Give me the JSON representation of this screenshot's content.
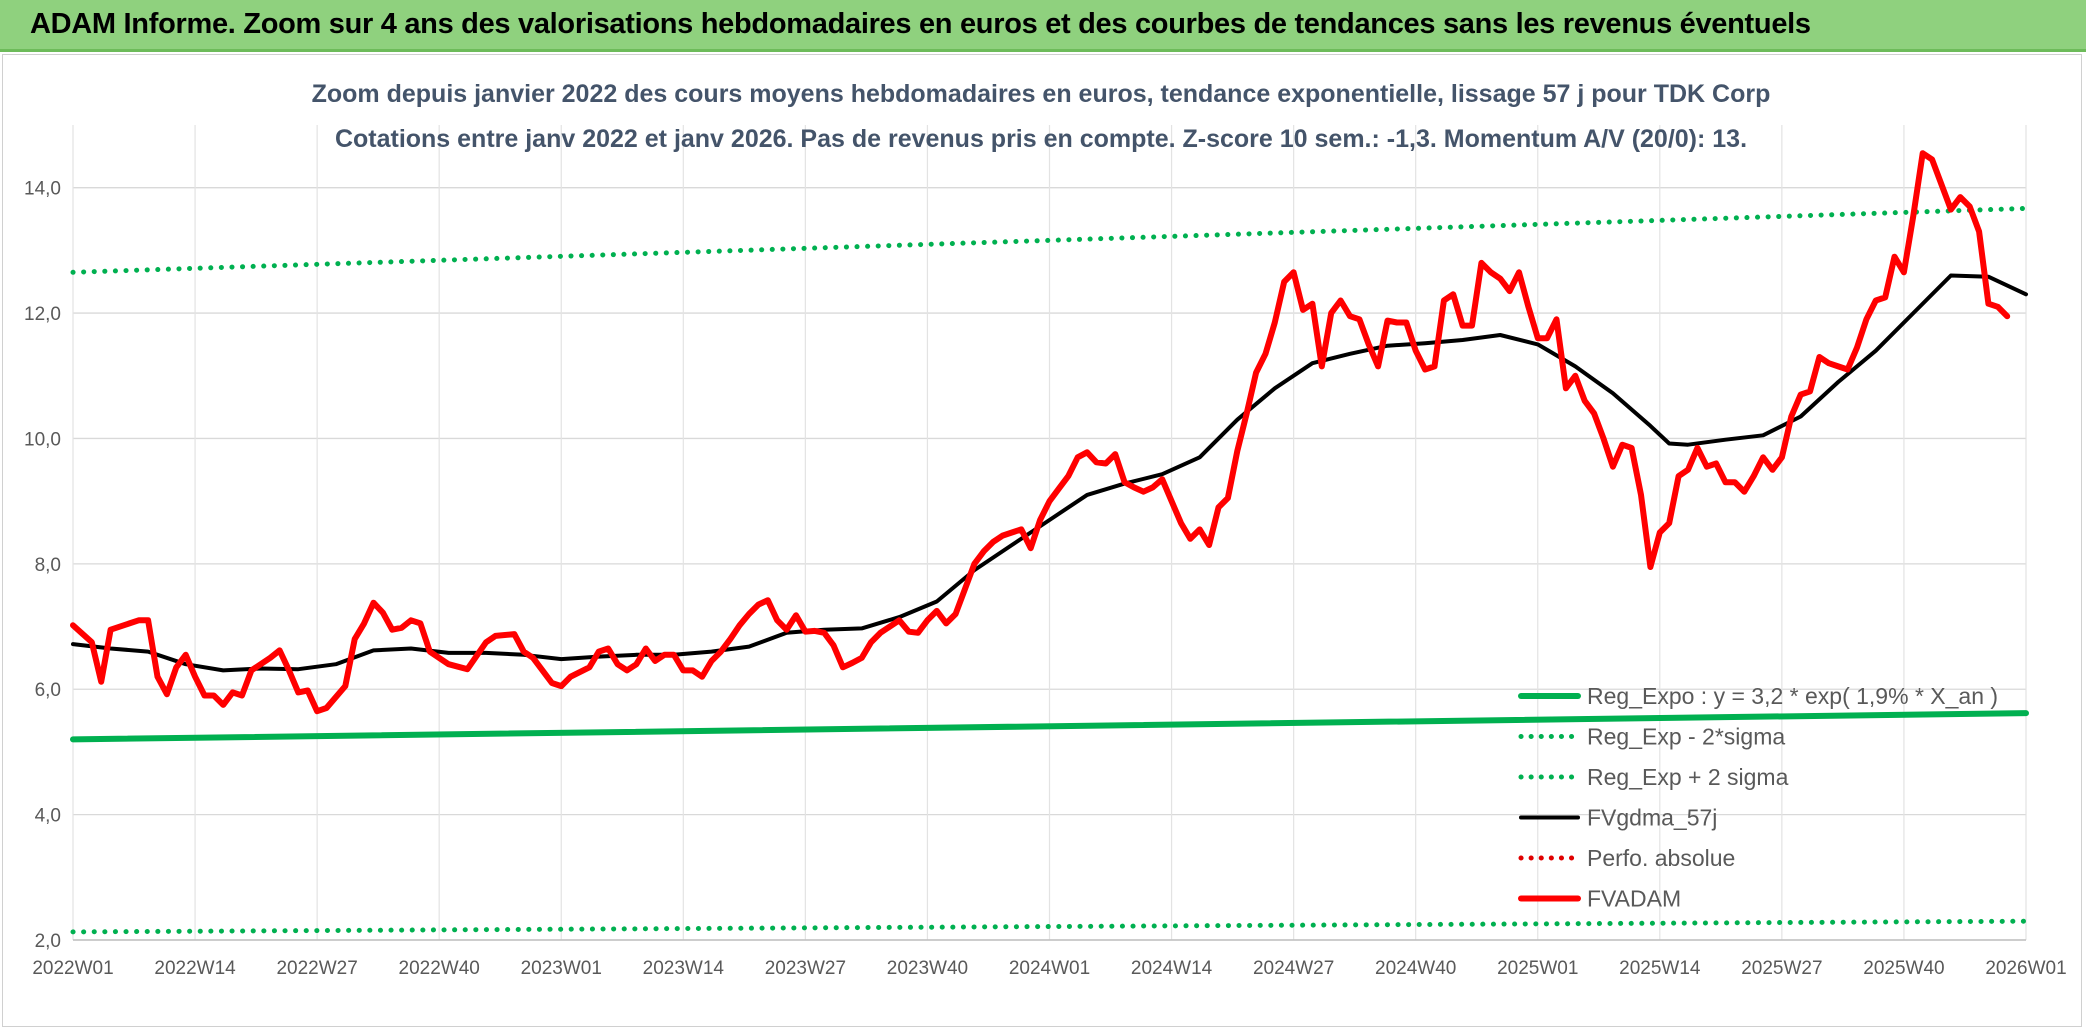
{
  "header": {
    "title": "ADAM Informe. Zoom sur 4 ans des valorisations hebdomadaires en euros et des courbes de tendances sans les revenus éventuels"
  },
  "chart_data": {
    "type": "line",
    "title": "Zoom depuis janvier 2022 des cours moyens hebdomadaires en euros, tendance exponentielle, lissage 57 j pour TDK Corp",
    "subtitle": "Cotations entre janv 2022 et janv 2026. Pas de revenus pris en compte. Z-score 10 sem.: -1,3. Momentum A/V (20/0): 13.",
    "ylim": [
      2.0,
      15.0
    ],
    "yticks": [
      2.0,
      4.0,
      6.0,
      8.0,
      10.0,
      12.0,
      14.0
    ],
    "ytick_labels": [
      "2,0",
      "4,0",
      "6,0",
      "8,0",
      "10,0",
      "12,0",
      "14,0"
    ],
    "x_range": [
      0,
      208
    ],
    "xticks": [
      0,
      13,
      26,
      39,
      52,
      65,
      78,
      91,
      104,
      117,
      130,
      143,
      156,
      169,
      182,
      195,
      208
    ],
    "xtick_labels": [
      "2022W01",
      "2022W14",
      "2022W27",
      "2022W40",
      "2023W01",
      "2023W14",
      "2023W27",
      "2023W40",
      "2024W01",
      "2024W14",
      "2024W27",
      "2024W40",
      "2025W01",
      "2025W14",
      "2025W27",
      "2025W40",
      "2026W01"
    ],
    "grid": true,
    "legend_position": "bottom-right",
    "series": [
      {
        "name": "Reg_Expo : y = 3,2 * exp( 1,9% *  X_an )",
        "color": "#00b050",
        "style": "solid",
        "points": [
          [
            0,
            5.2
          ],
          [
            208,
            5.62
          ]
        ]
      },
      {
        "name": "Reg_Exp - 2*sigma",
        "color": "#00b050",
        "style": "dotted",
        "points": [
          [
            0,
            2.13
          ],
          [
            208,
            2.3
          ]
        ]
      },
      {
        "name": "Reg_Exp + 2 sigma",
        "color": "#00b050",
        "style": "dotted",
        "points": [
          [
            0,
            12.65
          ],
          [
            208,
            13.67
          ]
        ]
      },
      {
        "name": "FVgdma_57j",
        "color": "#000000",
        "style": "solid",
        "points": [
          [
            0,
            6.72
          ],
          [
            4,
            6.65
          ],
          [
            8,
            6.6
          ],
          [
            12,
            6.4
          ],
          [
            16,
            6.3
          ],
          [
            20,
            6.33
          ],
          [
            24,
            6.32
          ],
          [
            28,
            6.4
          ],
          [
            32,
            6.62
          ],
          [
            36,
            6.65
          ],
          [
            40,
            6.58
          ],
          [
            44,
            6.58
          ],
          [
            48,
            6.55
          ],
          [
            52,
            6.48
          ],
          [
            56,
            6.52
          ],
          [
            60,
            6.55
          ],
          [
            64,
            6.55
          ],
          [
            68,
            6.6
          ],
          [
            72,
            6.68
          ],
          [
            76,
            6.9
          ],
          [
            80,
            6.95
          ],
          [
            84,
            6.97
          ],
          [
            88,
            7.15
          ],
          [
            92,
            7.4
          ],
          [
            96,
            7.9
          ],
          [
            100,
            8.3
          ],
          [
            104,
            8.7
          ],
          [
            108,
            9.1
          ],
          [
            112,
            9.28
          ],
          [
            116,
            9.43
          ],
          [
            120,
            9.7
          ],
          [
            124,
            10.3
          ],
          [
            128,
            10.8
          ],
          [
            132,
            11.2
          ],
          [
            136,
            11.35
          ],
          [
            140,
            11.48
          ],
          [
            144,
            11.52
          ],
          [
            148,
            11.57
          ],
          [
            152,
            11.65
          ],
          [
            156,
            11.5
          ],
          [
            160,
            11.15
          ],
          [
            164,
            10.72
          ],
          [
            168,
            10.2
          ],
          [
            170,
            9.92
          ],
          [
            172,
            9.9
          ],
          [
            176,
            9.98
          ],
          [
            180,
            10.05
          ],
          [
            184,
            10.35
          ],
          [
            188,
            10.9
          ],
          [
            192,
            11.4
          ],
          [
            196,
            12.0
          ],
          [
            200,
            12.6
          ],
          [
            204,
            12.58
          ],
          [
            208,
            12.3
          ]
        ]
      },
      {
        "name": "Perfo. absolue",
        "color": "#e00000",
        "style": "dotted",
        "points": []
      },
      {
        "name": "FVADAM",
        "color": "#ff0000",
        "style": "solid",
        "points": [
          [
            0,
            7.02
          ],
          [
            2,
            6.75
          ],
          [
            3,
            6.12
          ],
          [
            4,
            6.95
          ],
          [
            7,
            7.1
          ],
          [
            8,
            7.1
          ],
          [
            9,
            6.2
          ],
          [
            10,
            5.92
          ],
          [
            11,
            6.35
          ],
          [
            12,
            6.55
          ],
          [
            13,
            6.2
          ],
          [
            14,
            5.9
          ],
          [
            15,
            5.9
          ],
          [
            16,
            5.75
          ],
          [
            17,
            5.95
          ],
          [
            18,
            5.9
          ],
          [
            19,
            6.3
          ],
          [
            21,
            6.5
          ],
          [
            22,
            6.62
          ],
          [
            23,
            6.3
          ],
          [
            24,
            5.95
          ],
          [
            25,
            5.98
          ],
          [
            26,
            5.65
          ],
          [
            27,
            5.7
          ],
          [
            29,
            6.05
          ],
          [
            30,
            6.8
          ],
          [
            31,
            7.05
          ],
          [
            32,
            7.38
          ],
          [
            33,
            7.22
          ],
          [
            34,
            6.95
          ],
          [
            35,
            6.98
          ],
          [
            36,
            7.1
          ],
          [
            37,
            7.05
          ],
          [
            38,
            6.6
          ],
          [
            40,
            6.4
          ],
          [
            42,
            6.32
          ],
          [
            44,
            6.75
          ],
          [
            45,
            6.85
          ],
          [
            47,
            6.88
          ],
          [
            48,
            6.6
          ],
          [
            49,
            6.5
          ],
          [
            50,
            6.3
          ],
          [
            51,
            6.1
          ],
          [
            52,
            6.05
          ],
          [
            53,
            6.2
          ],
          [
            55,
            6.35
          ],
          [
            56,
            6.6
          ],
          [
            57,
            6.65
          ],
          [
            58,
            6.4
          ],
          [
            59,
            6.3
          ],
          [
            60,
            6.4
          ],
          [
            61,
            6.65
          ],
          [
            62,
            6.45
          ],
          [
            63,
            6.55
          ],
          [
            64,
            6.55
          ],
          [
            65,
            6.3
          ],
          [
            66,
            6.3
          ],
          [
            67,
            6.2
          ],
          [
            68,
            6.45
          ],
          [
            69,
            6.6
          ],
          [
            70,
            6.8
          ],
          [
            71,
            7.02
          ],
          [
            72,
            7.2
          ],
          [
            73,
            7.35
          ],
          [
            74,
            7.42
          ],
          [
            75,
            7.1
          ],
          [
            76,
            6.95
          ],
          [
            77,
            7.18
          ],
          [
            78,
            6.92
          ],
          [
            79,
            6.93
          ],
          [
            80,
            6.9
          ],
          [
            81,
            6.7
          ],
          [
            82,
            6.35
          ],
          [
            83,
            6.42
          ],
          [
            84,
            6.5
          ],
          [
            85,
            6.75
          ],
          [
            86,
            6.9
          ],
          [
            87,
            7.0
          ],
          [
            88,
            7.1
          ],
          [
            89,
            6.92
          ],
          [
            90,
            6.9
          ],
          [
            91,
            7.1
          ],
          [
            92,
            7.25
          ],
          [
            93,
            7.05
          ],
          [
            94,
            7.2
          ],
          [
            95,
            7.6
          ],
          [
            96,
            8.0
          ],
          [
            97,
            8.2
          ],
          [
            98,
            8.35
          ],
          [
            99,
            8.45
          ],
          [
            100,
            8.5
          ],
          [
            101,
            8.55
          ],
          [
            102,
            8.25
          ],
          [
            103,
            8.7
          ],
          [
            104,
            9.0
          ],
          [
            105,
            9.2
          ],
          [
            106,
            9.4
          ],
          [
            107,
            9.7
          ],
          [
            108,
            9.78
          ],
          [
            109,
            9.62
          ],
          [
            110,
            9.6
          ],
          [
            111,
            9.75
          ],
          [
            112,
            9.3
          ],
          [
            113,
            9.22
          ],
          [
            114,
            9.15
          ],
          [
            115,
            9.22
          ],
          [
            116,
            9.35
          ],
          [
            117,
            9.0
          ],
          [
            118,
            8.65
          ],
          [
            119,
            8.4
          ],
          [
            120,
            8.55
          ],
          [
            121,
            8.3
          ],
          [
            122,
            8.9
          ],
          [
            123,
            9.05
          ],
          [
            124,
            9.8
          ],
          [
            125,
            10.4
          ],
          [
            126,
            11.05
          ],
          [
            127,
            11.35
          ],
          [
            128,
            11.85
          ],
          [
            129,
            12.5
          ],
          [
            130,
            12.65
          ],
          [
            131,
            12.05
          ],
          [
            132,
            12.15
          ],
          [
            133,
            11.15
          ],
          [
            134,
            12.0
          ],
          [
            135,
            12.2
          ],
          [
            136,
            11.95
          ],
          [
            137,
            11.9
          ],
          [
            138,
            11.5
          ],
          [
            139,
            11.15
          ],
          [
            140,
            11.88
          ],
          [
            141,
            11.85
          ],
          [
            142,
            11.85
          ],
          [
            143,
            11.4
          ],
          [
            144,
            11.1
          ],
          [
            145,
            11.15
          ],
          [
            146,
            12.2
          ],
          [
            147,
            12.3
          ],
          [
            148,
            11.8
          ],
          [
            149,
            11.8
          ],
          [
            150,
            12.8
          ],
          [
            151,
            12.65
          ],
          [
            152,
            12.55
          ],
          [
            153,
            12.35
          ],
          [
            154,
            12.65
          ],
          [
            155,
            12.1
          ],
          [
            156,
            11.6
          ],
          [
            157,
            11.6
          ],
          [
            158,
            11.9
          ],
          [
            159,
            10.8
          ],
          [
            160,
            11.0
          ],
          [
            161,
            10.6
          ],
          [
            162,
            10.4
          ],
          [
            163,
            10.0
          ],
          [
            164,
            9.55
          ],
          [
            165,
            9.9
          ],
          [
            166,
            9.85
          ],
          [
            167,
            9.1
          ],
          [
            168,
            7.95
          ],
          [
            169,
            8.5
          ],
          [
            170,
            8.65
          ],
          [
            171,
            9.4
          ],
          [
            172,
            9.5
          ],
          [
            173,
            9.85
          ],
          [
            174,
            9.55
          ],
          [
            175,
            9.6
          ],
          [
            176,
            9.3
          ],
          [
            177,
            9.3
          ],
          [
            178,
            9.15
          ],
          [
            179,
            9.4
          ],
          [
            180,
            9.7
          ],
          [
            181,
            9.5
          ],
          [
            182,
            9.7
          ],
          [
            183,
            10.35
          ],
          [
            184,
            10.7
          ],
          [
            185,
            10.75
          ],
          [
            186,
            11.3
          ],
          [
            187,
            11.2
          ],
          [
            188,
            11.15
          ],
          [
            189,
            11.1
          ],
          [
            190,
            11.45
          ],
          [
            191,
            11.9
          ],
          [
            192,
            12.2
          ],
          [
            193,
            12.25
          ],
          [
            194,
            12.9
          ],
          [
            195,
            12.65
          ],
          [
            196,
            13.55
          ],
          [
            197,
            14.55
          ],
          [
            198,
            14.45
          ],
          [
            199,
            14.05
          ],
          [
            200,
            13.65
          ],
          [
            201,
            13.85
          ],
          [
            202,
            13.7
          ],
          [
            203,
            13.3
          ],
          [
            204,
            12.15
          ],
          [
            205,
            12.1
          ],
          [
            206,
            11.95
          ]
        ]
      }
    ]
  }
}
